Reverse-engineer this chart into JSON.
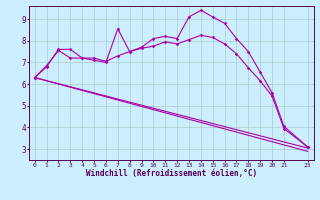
{
  "xlabel": "Windchill (Refroidissement éolien,°C)",
  "bg_color": "#cceeff",
  "grid_color": "#aacccc",
  "line_color": "#aa00aa",
  "x_ticks": [
    0,
    1,
    2,
    3,
    4,
    5,
    6,
    7,
    8,
    9,
    10,
    11,
    12,
    13,
    14,
    15,
    16,
    17,
    18,
    19,
    20,
    21,
    23
  ],
  "xlim": [
    -0.5,
    23.5
  ],
  "ylim": [
    2.5,
    9.6
  ],
  "y_ticks": [
    3,
    4,
    5,
    6,
    7,
    8,
    9
  ],
  "series1_x": [
    0,
    1,
    2,
    3,
    4,
    5,
    6,
    7,
    8,
    9,
    10,
    11,
    12,
    13,
    14,
    15,
    16,
    17,
    18,
    19,
    20,
    21,
    23
  ],
  "series1_y": [
    6.3,
    6.8,
    7.6,
    7.6,
    7.2,
    7.1,
    7.0,
    8.55,
    7.5,
    7.7,
    8.1,
    8.2,
    8.1,
    9.1,
    9.4,
    9.1,
    8.8,
    8.1,
    7.5,
    6.55,
    5.6,
    4.05,
    3.1
  ],
  "series2_x": [
    0,
    1,
    2,
    3,
    4,
    5,
    6,
    7,
    8,
    9,
    10,
    11,
    12,
    13,
    14,
    15,
    16,
    17,
    18,
    19,
    20,
    21,
    23
  ],
  "series2_y": [
    6.3,
    6.85,
    7.55,
    7.2,
    7.2,
    7.2,
    7.05,
    7.3,
    7.5,
    7.65,
    7.75,
    7.95,
    7.85,
    8.05,
    8.25,
    8.15,
    7.85,
    7.4,
    6.75,
    6.15,
    5.45,
    3.95,
    3.1
  ],
  "line3_x": [
    0,
    23
  ],
  "line3_y": [
    6.3,
    3.05
  ],
  "line4_x": [
    0,
    23
  ],
  "line4_y": [
    6.3,
    2.9
  ]
}
